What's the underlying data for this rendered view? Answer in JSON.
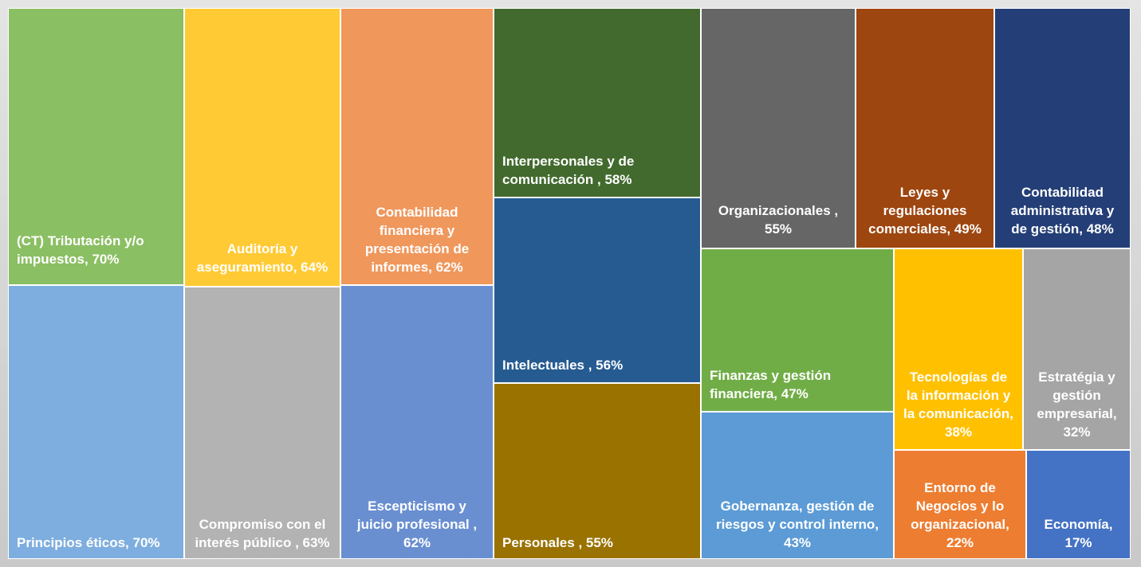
{
  "chart_data": {
    "type": "treemap",
    "labels": [
      "(CT) Tributación y/o impuestos, 70%",
      "Principios éticos, 70%",
      "Auditoría y aseguramiento, 64%",
      "Compromiso con el interés público , 63%",
      "Contabilidad financiera y presentación de informes, 62%",
      "Escepticismo y juicio profesional , 62%",
      "Interpersonales y de comunicación , 58%",
      "Intelectuales , 56%",
      "Personales , 55%",
      "Organizacionales , 55%",
      "Leyes y regulaciones comerciales, 49%",
      "Contabilidad administrativa y de gestión, 48%",
      "Finanzas y gestión financiera, 47%",
      "Gobernanza, gestión de riesgos y control interno, 43%",
      "Tecnologías de la información y la comunicación, 38%",
      "Estratégia y gestión empresarial, 32%",
      "Entorno de Negocios y lo organizacional, 22%",
      "Economía, 17%"
    ],
    "values": [
      70,
      70,
      64,
      63,
      62,
      62,
      58,
      56,
      55,
      55,
      49,
      48,
      47,
      43,
      38,
      32,
      22,
      17
    ],
    "colors": [
      "#8bbf63",
      "#7eaedf",
      "#ffca33",
      "#b3b3b3",
      "#f0975c",
      "#6a8fd1",
      "#426a2e",
      "#265b92",
      "#9a7200",
      "#666666",
      "#9e4610",
      "#243f77",
      "#71ad47",
      "#5c9bd5",
      "#ffc000",
      "#a5a5a5",
      "#ed7d31",
      "#4472c4"
    ]
  }
}
